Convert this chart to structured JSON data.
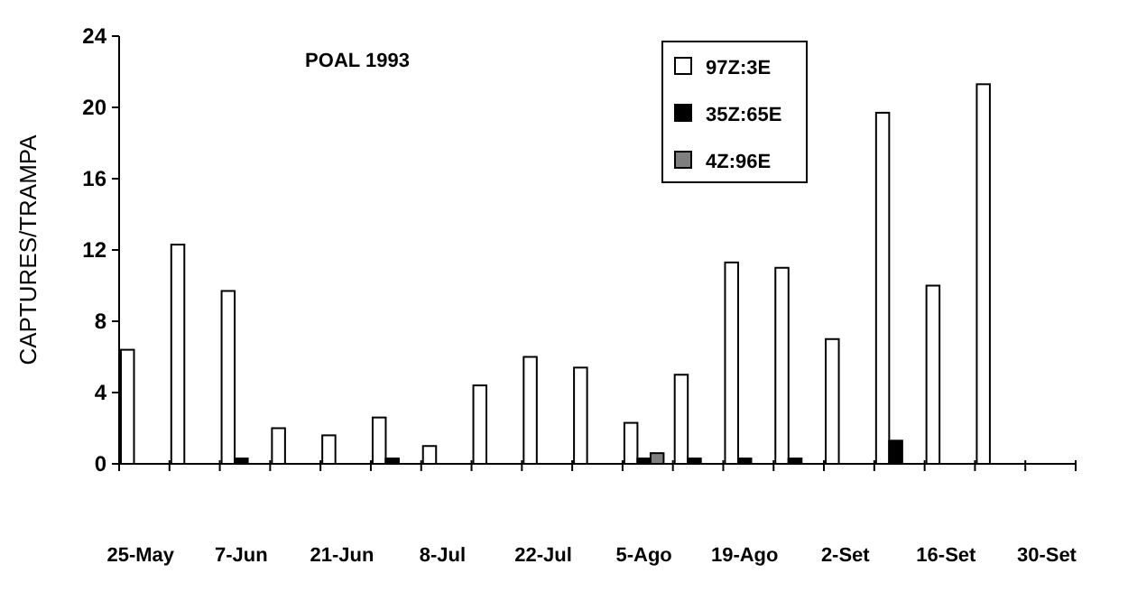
{
  "chart_data": {
    "type": "bar",
    "title": "POAL 1993",
    "ylabel": "CAPTURES/TRAMPA",
    "categories": [
      "25-May",
      null,
      "7-Jun",
      null,
      "21-Jun",
      null,
      "8-Jul",
      null,
      "22-Jul",
      null,
      "5-Ago",
      null,
      "19-Ago",
      null,
      "2-Set",
      null,
      "16-Set",
      null,
      "30-Set"
    ],
    "series": [
      {
        "name": "97Z:3E",
        "color": "#ffffff",
        "values": [
          6.4,
          12.3,
          9.7,
          2.0,
          1.6,
          2.6,
          1.0,
          4.4,
          6.0,
          5.4,
          2.3,
          5.0,
          11.3,
          11.0,
          7.0,
          19.7,
          10.0,
          21.3,
          null
        ]
      },
      {
        "name": "35Z:65E",
        "color": "#000000",
        "values": [
          null,
          null,
          0.3,
          null,
          null,
          0.3,
          null,
          null,
          null,
          null,
          0.3,
          0.3,
          0.3,
          0.3,
          null,
          1.3,
          null,
          null,
          null
        ]
      },
      {
        "name": "4Z:96E",
        "color": "#7f7f7f",
        "values": [
          null,
          null,
          null,
          null,
          null,
          null,
          null,
          null,
          null,
          null,
          0.6,
          null,
          null,
          null,
          null,
          null,
          null,
          null,
          null
        ]
      }
    ],
    "ylim": [
      0,
      24
    ],
    "yticks": [
      0,
      4,
      8,
      12,
      16,
      20,
      24
    ],
    "legend": "top right",
    "grid": false
  }
}
